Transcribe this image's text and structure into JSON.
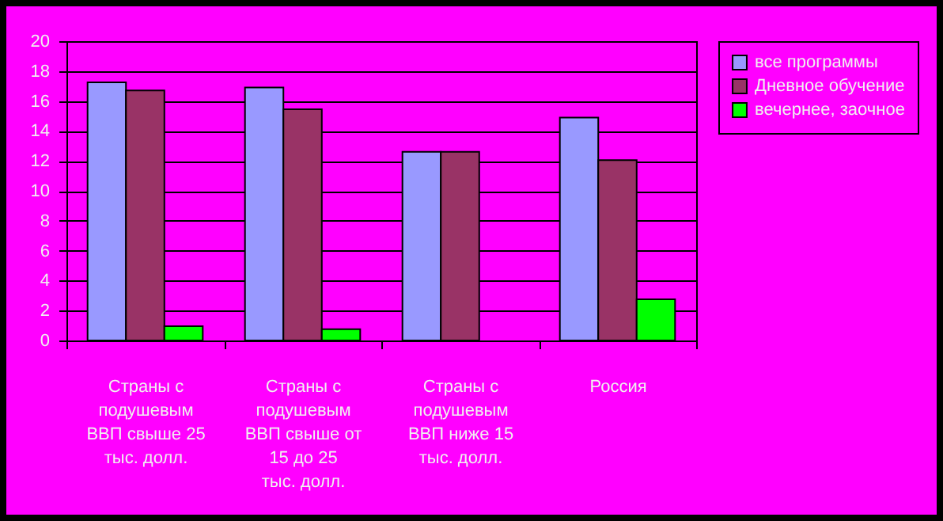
{
  "chart_data": {
    "type": "bar",
    "categories": [
      "Страны с подушевым ВВП свыше 25 тыс. долл.",
      "Страны с подушевым ВВП свыше от 15 до 25  тыс. долл.",
      "Страны с подушевым ВВП ниже 15 тыс. долл.",
      "Россия"
    ],
    "series": [
      {
        "name": "все программы",
        "color": "#9999ff",
        "values": [
          17.25,
          16.9,
          12.6,
          14.9
        ]
      },
      {
        "name": "Дневное обучение",
        "color": "#993366",
        "values": [
          16.7,
          15.45,
          12.6,
          12.05
        ]
      },
      {
        "name": "вечернее, заочное",
        "color": "#00ff00",
        "values": [
          0.95,
          0.75,
          null,
          2.75
        ]
      }
    ],
    "ylim": [
      0,
      20
    ],
    "yticks": [
      0,
      2,
      4,
      6,
      8,
      10,
      12,
      14,
      16,
      18,
      20
    ],
    "grid": true,
    "legend": "right"
  }
}
